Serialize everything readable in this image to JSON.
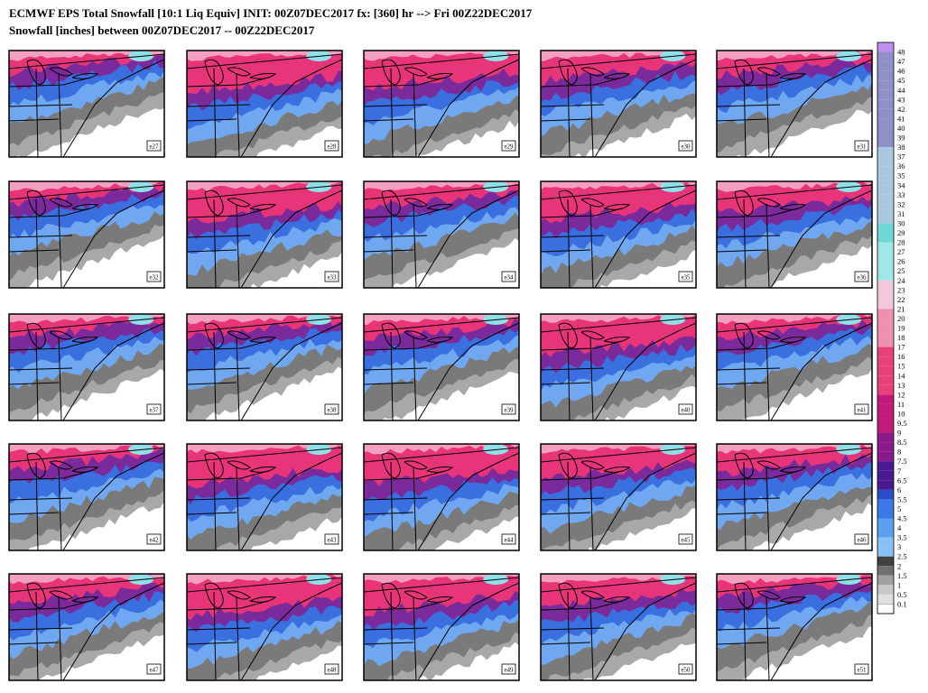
{
  "header": {
    "title": "ECMWF EPS Total Snowfall [10:1 Liq Equiv] INIT: 00Z07DEC2017 fx: [360] hr --> Fri 00Z22DEC2017",
    "subtitle": "Snowfall [inches] between 00Z07DEC2017 -- 00Z22DEC2017"
  },
  "panels": [
    "e27",
    "e28",
    "e29",
    "e30",
    "e31",
    "e32",
    "e33",
    "e34",
    "e35",
    "e36",
    "e37",
    "e38",
    "e39",
    "e40",
    "e41",
    "e42",
    "e43",
    "e44",
    "e45",
    "e46",
    "e47",
    "e48",
    "e49",
    "e50",
    "e51"
  ],
  "colorbar": {
    "labels": [
      "48",
      "47",
      "46",
      "45",
      "44",
      "43",
      "42",
      "41",
      "40",
      "39",
      "38",
      "37",
      "36",
      "35",
      "34",
      "33",
      "32",
      "31",
      "30",
      "29",
      "28",
      "27",
      "26",
      "25",
      "24",
      "23",
      "22",
      "21",
      "20",
      "19",
      "18",
      "17",
      "16",
      "15",
      "14",
      "13",
      "12",
      "11",
      "10",
      "9.5",
      "9",
      "8.5",
      "8",
      "7.5",
      "7",
      "6.5",
      "6",
      "5.5",
      "5",
      "4.5",
      "4",
      "3.5",
      "3",
      "2.5",
      "2",
      "1.5",
      "1",
      "0.5",
      "0.1"
    ]
  }
}
